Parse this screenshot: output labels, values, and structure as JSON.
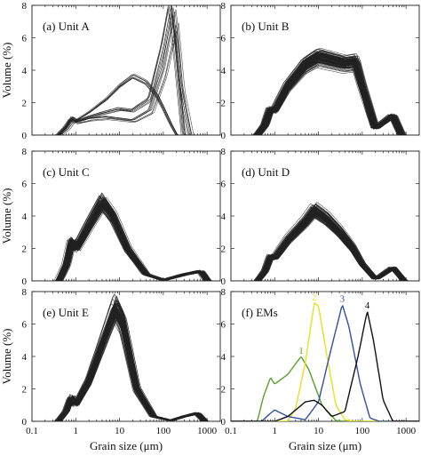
{
  "chart_data": [
    {
      "type": "line",
      "panel": "a",
      "title": "(a) Unit A",
      "xlabel": "",
      "ylabel": "Volume (%)",
      "x_scale": "log",
      "xlim": [
        0.1,
        2000
      ],
      "ylim": [
        0,
        8
      ],
      "xticks": [
        "0.1",
        "1",
        "10",
        "100",
        "1000"
      ],
      "yticks": [
        "0",
        "2",
        "4",
        "6",
        "8"
      ],
      "series_count": 24,
      "series": [
        {
          "points": [
            [
              0.4,
              0
            ],
            [
              0.6,
              0.5
            ],
            [
              0.8,
              1.1
            ],
            [
              1,
              0.9
            ],
            [
              2,
              1.4
            ],
            [
              5,
              2.2
            ],
            [
              10,
              3.0
            ],
            [
              20,
              3.6
            ],
            [
              40,
              3.2
            ],
            [
              70,
              2.4
            ],
            [
              100,
              1.6
            ],
            [
              150,
              0.6
            ],
            [
              200,
              0
            ]
          ]
        },
        {
          "points": [
            [
              0.4,
              0
            ],
            [
              0.6,
              0.5
            ],
            [
              0.8,
              1.0
            ],
            [
              1,
              0.8
            ],
            [
              2,
              1.1
            ],
            [
              5,
              1.4
            ],
            [
              10,
              1.6
            ],
            [
              20,
              1.5
            ],
            [
              50,
              2.2
            ],
            [
              100,
              5.5
            ],
            [
              150,
              8.0
            ],
            [
              200,
              5.0
            ],
            [
              300,
              0
            ]
          ]
        },
        {
          "points": [
            [
              0.4,
              0
            ],
            [
              0.6,
              0.4
            ],
            [
              0.8,
              0.9
            ],
            [
              1,
              0.8
            ],
            [
              2,
              1.0
            ],
            [
              5,
              1.1
            ],
            [
              10,
              1.0
            ],
            [
              20,
              0.9
            ],
            [
              50,
              1.5
            ],
            [
              100,
              4.0
            ],
            [
              180,
              7.5
            ],
            [
              250,
              3.0
            ],
            [
              400,
              0
            ]
          ]
        }
      ]
    },
    {
      "type": "line",
      "panel": "b",
      "title": "(b) Unit B",
      "xlabel": "",
      "ylabel": "",
      "x_scale": "log",
      "xlim": [
        0.1,
        2000
      ],
      "ylim": [
        0,
        8
      ],
      "xticks": [
        "0.1",
        "1",
        "10",
        "100",
        "1000"
      ],
      "yticks": [
        "0",
        "2",
        "4",
        "6",
        "8"
      ],
      "series_count": 120,
      "series": [
        {
          "points": [
            [
              0.4,
              0
            ],
            [
              0.6,
              0.6
            ],
            [
              0.8,
              1.6
            ],
            [
              1,
              1.5
            ],
            [
              2,
              3.0
            ],
            [
              5,
              4.3
            ],
            [
              10,
              4.8
            ],
            [
              20,
              4.6
            ],
            [
              40,
              4.4
            ],
            [
              70,
              4.5
            ],
            [
              100,
              3.0
            ],
            [
              200,
              0.4
            ],
            [
              500,
              1.2
            ],
            [
              800,
              0
            ]
          ]
        }
      ]
    },
    {
      "type": "line",
      "panel": "c",
      "title": "(c) Unit C",
      "xlabel": "",
      "ylabel": "Volume (%)",
      "x_scale": "log",
      "xlim": [
        0.1,
        2000
      ],
      "ylim": [
        0,
        8
      ],
      "xticks": [
        "0.1",
        "1",
        "10",
        "100",
        "1000"
      ],
      "yticks": [
        "0",
        "2",
        "4",
        "6",
        "8"
      ],
      "series_count": 90,
      "series": [
        {
          "points": [
            [
              0.4,
              0
            ],
            [
              0.6,
              1.0
            ],
            [
              0.8,
              2.5
            ],
            [
              1,
              2.0
            ],
            [
              2,
              3.5
            ],
            [
              4,
              4.9
            ],
            [
              7,
              4.0
            ],
            [
              15,
              2.0
            ],
            [
              40,
              0.4
            ],
            [
              100,
              0.05
            ],
            [
              300,
              0.4
            ],
            [
              700,
              0.6
            ],
            [
              1000,
              0
            ]
          ]
        }
      ]
    },
    {
      "type": "line",
      "panel": "d",
      "title": "(d) Unit D",
      "xlabel": "",
      "ylabel": "",
      "x_scale": "log",
      "xlim": [
        0.1,
        2000
      ],
      "ylim": [
        0,
        8
      ],
      "xticks": [
        "0.1",
        "1",
        "10",
        "100",
        "1000"
      ],
      "yticks": [
        "0",
        "2",
        "4",
        "6",
        "8"
      ],
      "series_count": 120,
      "series": [
        {
          "points": [
            [
              0.4,
              0
            ],
            [
              0.6,
              0.6
            ],
            [
              0.8,
              1.5
            ],
            [
              1,
              1.4
            ],
            [
              2,
              2.5
            ],
            [
              5,
              3.6
            ],
            [
              8,
              4.3
            ],
            [
              15,
              3.8
            ],
            [
              30,
              3.0
            ],
            [
              60,
              2.0
            ],
            [
              100,
              1.0
            ],
            [
              200,
              0.1
            ],
            [
              500,
              0.8
            ],
            [
              900,
              0
            ]
          ]
        }
      ]
    },
    {
      "type": "line",
      "panel": "e",
      "title": "(e) Unit E",
      "xlabel": "Grain size (μm)",
      "ylabel": "Volume (%)",
      "x_scale": "log",
      "xlim": [
        0.1,
        2000
      ],
      "ylim": [
        0,
        8
      ],
      "xticks": [
        "0.1",
        "1",
        "10",
        "100",
        "1000"
      ],
      "yticks": [
        "0",
        "2",
        "4",
        "6",
        "8"
      ],
      "series_count": 90,
      "series": [
        {
          "points": [
            [
              0.4,
              0
            ],
            [
              0.6,
              0.6
            ],
            [
              0.8,
              1.5
            ],
            [
              1,
              1.0
            ],
            [
              2,
              2.5
            ],
            [
              5,
              5.5
            ],
            [
              8,
              7.0
            ],
            [
              12,
              6.0
            ],
            [
              25,
              2.0
            ],
            [
              60,
              0.3
            ],
            [
              150,
              0.05
            ],
            [
              300,
              0.3
            ],
            [
              600,
              0.5
            ],
            [
              900,
              0
            ]
          ]
        }
      ]
    },
    {
      "type": "line",
      "panel": "f",
      "title": "(f) EMs",
      "xlabel": "Grain size (μm)",
      "ylabel": "",
      "x_scale": "log",
      "xlim": [
        0.1,
        2000
      ],
      "ylim": [
        0,
        8
      ],
      "xticks": [
        "0.1",
        "1",
        "10",
        "100",
        "1000"
      ],
      "yticks": [
        "0",
        "2",
        "4",
        "6",
        "8"
      ],
      "series": [
        {
          "name": "1",
          "color": "#5aa02c",
          "points": [
            [
              0.4,
              0
            ],
            [
              0.55,
              1.5
            ],
            [
              0.8,
              2.7
            ],
            [
              1,
              2.3
            ],
            [
              2,
              2.9
            ],
            [
              4,
              4.0
            ],
            [
              6,
              3.2
            ],
            [
              12,
              1.0
            ],
            [
              25,
              0.05
            ],
            [
              40,
              0
            ]
          ]
        },
        {
          "name": "2",
          "color": "#e8e020",
          "points": [
            [
              2,
              0
            ],
            [
              3,
              0.8
            ],
            [
              5,
              3.6
            ],
            [
              8,
              7.3
            ],
            [
              10,
              7.1
            ],
            [
              15,
              4.3
            ],
            [
              25,
              1.0
            ],
            [
              40,
              0.1
            ],
            [
              60,
              0
            ]
          ]
        },
        {
          "name": "3",
          "color": "#3050a0",
          "points": [
            [
              0.5,
              0
            ],
            [
              0.8,
              0.5
            ],
            [
              1,
              0.7
            ],
            [
              2,
              0.3
            ],
            [
              5,
              0.1
            ],
            [
              10,
              1.2
            ],
            [
              20,
              4.6
            ],
            [
              35,
              7.2
            ],
            [
              50,
              5.8
            ],
            [
              90,
              2.3
            ],
            [
              150,
              0.2
            ],
            [
              250,
              0
            ]
          ]
        },
        {
          "name": "4",
          "color": "#111111",
          "points": [
            [
              1,
              0
            ],
            [
              2,
              0.3
            ],
            [
              5,
              1.2
            ],
            [
              8,
              1.3
            ],
            [
              12,
              1.0
            ],
            [
              20,
              0.3
            ],
            [
              40,
              0.6
            ],
            [
              80,
              4.0
            ],
            [
              130,
              6.8
            ],
            [
              180,
              5.0
            ],
            [
              300,
              1.3
            ],
            [
              500,
              0
            ]
          ]
        }
      ]
    }
  ]
}
